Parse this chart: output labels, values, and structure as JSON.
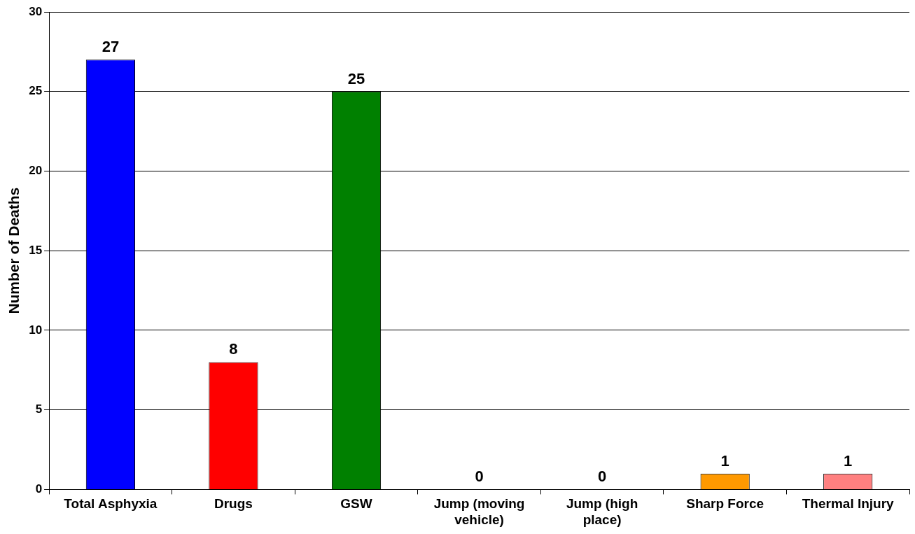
{
  "chart_data": {
    "type": "bar",
    "ylabel": "Number of Deaths",
    "categories": [
      "Total Asphyxia",
      "Drugs",
      "GSW",
      "Jump (moving vehicle)",
      "Jump (high place)",
      "Sharp Force",
      "Thermal Injury"
    ],
    "values": [
      27,
      8,
      25,
      0,
      0,
      1,
      1
    ],
    "colors": [
      "#0000ff",
      "#ff0000",
      "#008000",
      "#808080",
      "#808080",
      "#ff9900",
      "#ff8080"
    ],
    "ylim": [
      0,
      30
    ],
    "yticks": [
      0,
      5,
      10,
      15,
      20,
      25,
      30
    ],
    "grid": "y",
    "legend": false,
    "data_labels": true
  }
}
